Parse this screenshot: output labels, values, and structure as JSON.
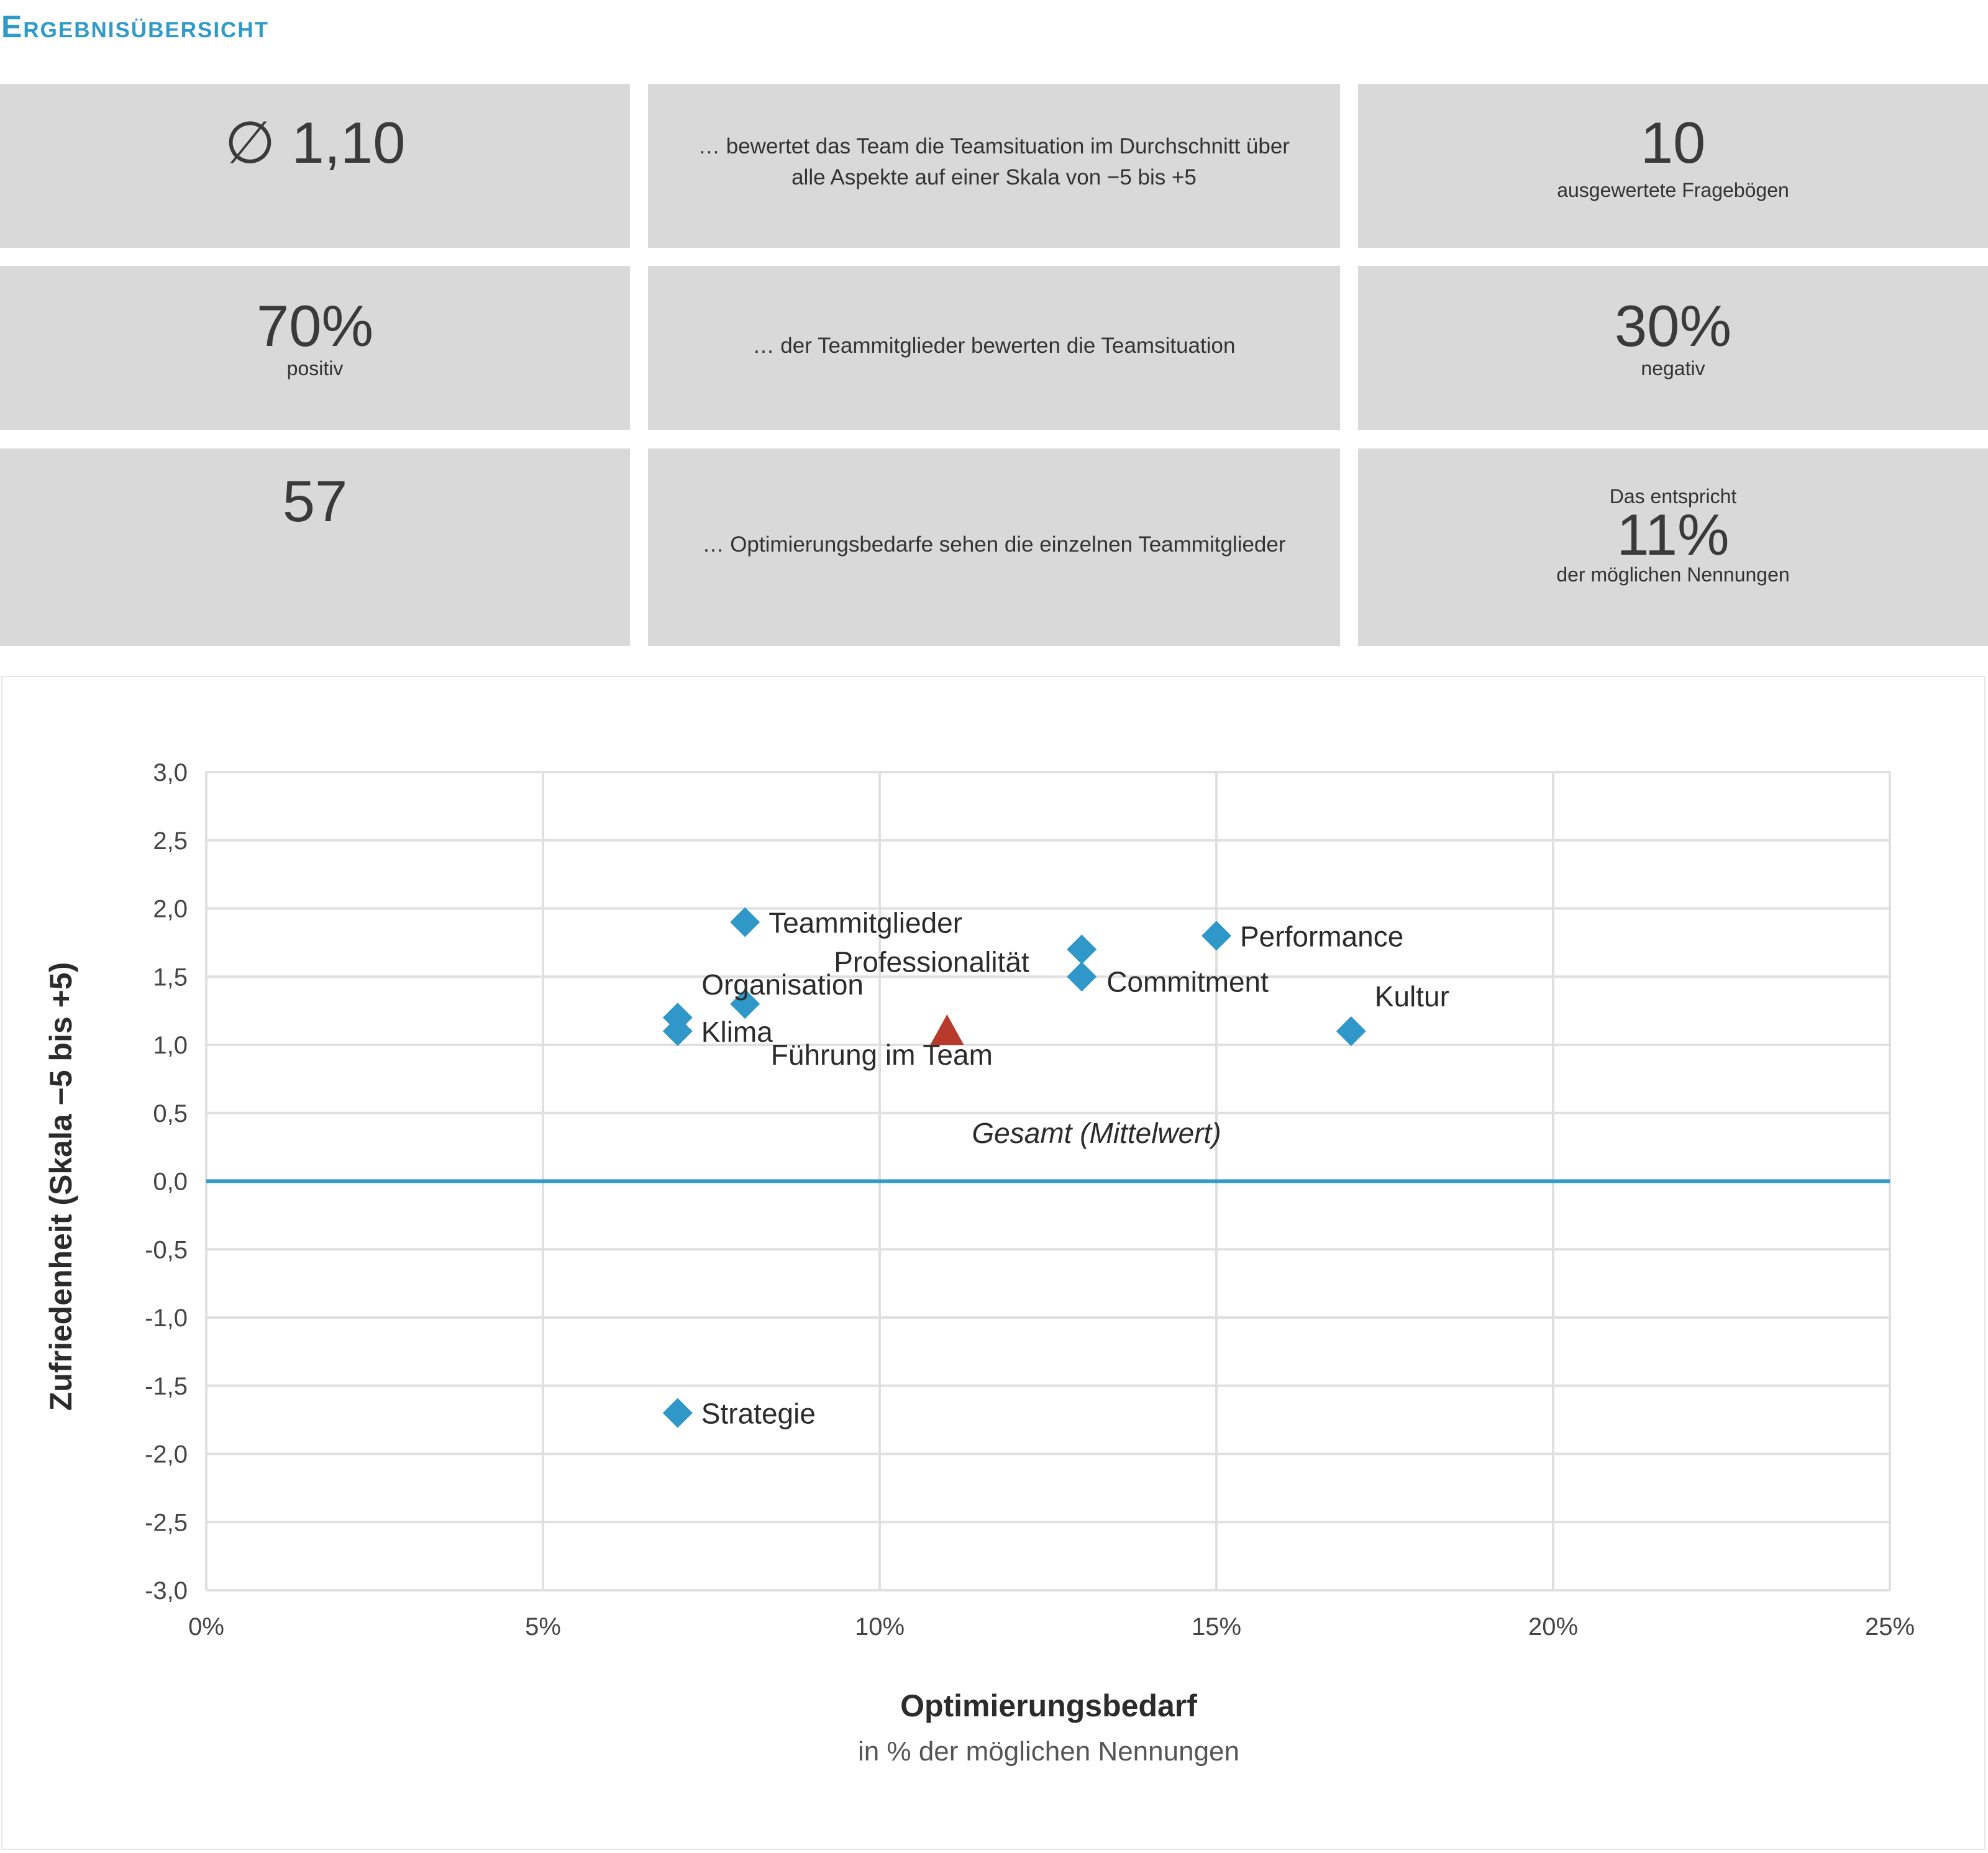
{
  "header": {
    "title": "Ergebnisübersicht"
  },
  "cards": {
    "avg_value": "∅ 1,10",
    "avg_desc_line1": "… bewertet das Team die Teamsituation im Durchschnitt über",
    "avg_desc_line2": "alle Aspekte auf einer Skala von −5 bis +5",
    "questionnaires_value": "10",
    "questionnaires_label": "ausgewertete Fragebögen",
    "positive_value": "70%",
    "positive_label": "positiv",
    "members_desc": "… der Teammitglieder bewerten die Teamsituation",
    "negative_value": "30%",
    "negative_label": "negativ",
    "needs_value": "57",
    "needs_desc": "… Optimierungsbedarfe sehen die einzelnen Teammitglieder",
    "share_prefix": "Das entspricht",
    "share_value": "11%",
    "share_suffix": "der möglichen Nennungen"
  },
  "colors": {
    "accent": "#2e9bc8",
    "card_bg": "#d9d9d9",
    "point": "#2f98c8",
    "average_marker": "#b73a2c",
    "zero_line": "#2e9bc8",
    "grid": "#e0e0e0"
  },
  "chart_data": {
    "type": "scatter",
    "xlabel": "Optimierungsbedarf",
    "xlabel_sub": "in % der möglichen Nennungen",
    "ylabel": "Zufriedenheit (Skala −5 bis +5)",
    "xlim": [
      0,
      25
    ],
    "ylim": [
      -3,
      3
    ],
    "x_ticks": [
      0,
      5,
      10,
      15,
      20,
      25
    ],
    "x_tick_labels": [
      "0%",
      "5%",
      "10%",
      "15%",
      "20%",
      "25%"
    ],
    "y_ticks": [
      3,
      2.5,
      2,
      1.5,
      1,
      0.5,
      0,
      -0.5,
      -1,
      -1.5,
      -2,
      -2.5,
      -3
    ],
    "y_tick_labels": [
      "3,0",
      "2,5",
      "2,0",
      "1,5",
      "1,0",
      "0,5",
      "0,0",
      "-0,5",
      "-1,0",
      "-1,5",
      "-2,0",
      "-2,5",
      "-3,0"
    ],
    "grid": true,
    "points": [
      {
        "label": "Teammitglieder",
        "x": 8,
        "y": 1.9
      },
      {
        "label": "Performance",
        "x": 15,
        "y": 1.8
      },
      {
        "label": "Commitment",
        "x": 13,
        "y": 1.5
      },
      {
        "label": "Organisation",
        "x": 8,
        "y": 1.3
      },
      {
        "label": "Klima",
        "x": 7,
        "y": 1.1
      },
      {
        "label": "Führung im Team",
        "x": 7,
        "y": 1.2
      },
      {
        "label": "Kultur",
        "x": 17,
        "y": 1.1
      },
      {
        "label": "Professionalität",
        "x": 13,
        "y": 1.7
      },
      {
        "label": "Strategie",
        "x": 7,
        "y": -1.7
      }
    ],
    "average": {
      "label": "Gesamt (Mittelwert)",
      "x": 11,
      "y": 1.1
    }
  }
}
